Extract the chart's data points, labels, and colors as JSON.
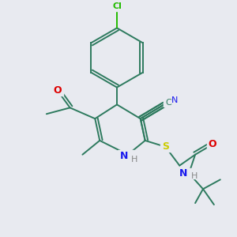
{
  "background_color": "#e8eaf0",
  "colors": {
    "bond": "#2d7a5e",
    "C": "#2d7a5e",
    "N": "#1a1aee",
    "O": "#dd0000",
    "S": "#cccc00",
    "Cl": "#22bb00",
    "H": "#888888"
  },
  "figsize": [
    3.0,
    3.0
  ],
  "dpi": 100
}
